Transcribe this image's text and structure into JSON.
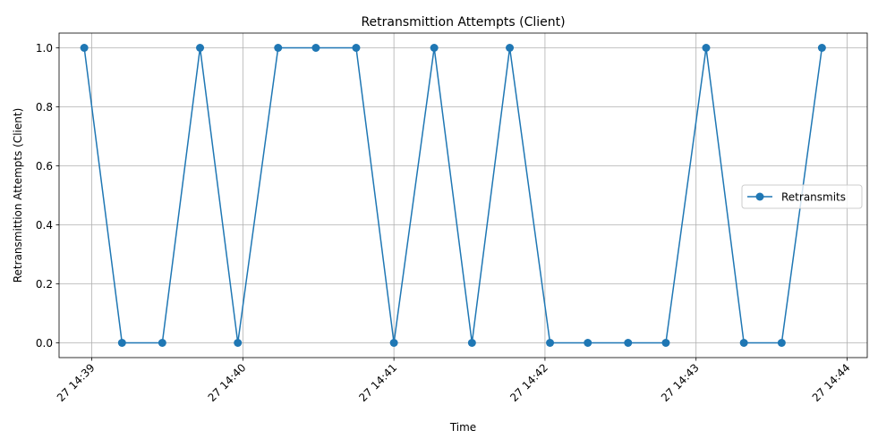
{
  "chart_data": {
    "type": "line",
    "title": "Retransmittion Attempts (Client)",
    "xlabel": "Time",
    "ylabel": "Retransmittion Attempts (Client)",
    "ylim": [
      -0.05,
      1.05
    ],
    "xlim": [
      "27 14:38:47",
      "27 14:44:08"
    ],
    "grid": true,
    "legend_position": "center-right",
    "x_tick_labels": [
      "27 14:39",
      "27 14:40",
      "27 14:41",
      "27 14:42",
      "27 14:43",
      "27 14:44"
    ],
    "x_ticks": [
      "27 14:39:00",
      "27 14:40:00",
      "27 14:41:00",
      "27 14:42:00",
      "27 14:43:00",
      "27 14:44:00"
    ],
    "y_tick_labels": [
      "0.0",
      "0.2",
      "0.4",
      "0.6",
      "0.8",
      "1.0"
    ],
    "y_ticks": [
      0,
      0.2,
      0.4,
      0.6,
      0.8,
      1.0
    ],
    "series": [
      {
        "name": "Retransmits",
        "color": "#1f77b4",
        "marker": "circle",
        "x": [
          "27 14:38:57",
          "27 14:39:12",
          "27 14:39:28",
          "27 14:39:43",
          "27 14:39:58",
          "27 14:40:14",
          "27 14:40:29",
          "27 14:40:45",
          "27 14:41:00",
          "27 14:41:16",
          "27 14:41:31",
          "27 14:41:46",
          "27 14:42:02",
          "27 14:42:17",
          "27 14:42:33",
          "27 14:42:48",
          "27 14:43:04",
          "27 14:43:19",
          "27 14:43:34",
          "27 14:43:50"
        ],
        "values": [
          1,
          0,
          0,
          1,
          0,
          1,
          1,
          1,
          0,
          1,
          0,
          1,
          0,
          0,
          0,
          0,
          1,
          0,
          0,
          1
        ]
      }
    ]
  }
}
